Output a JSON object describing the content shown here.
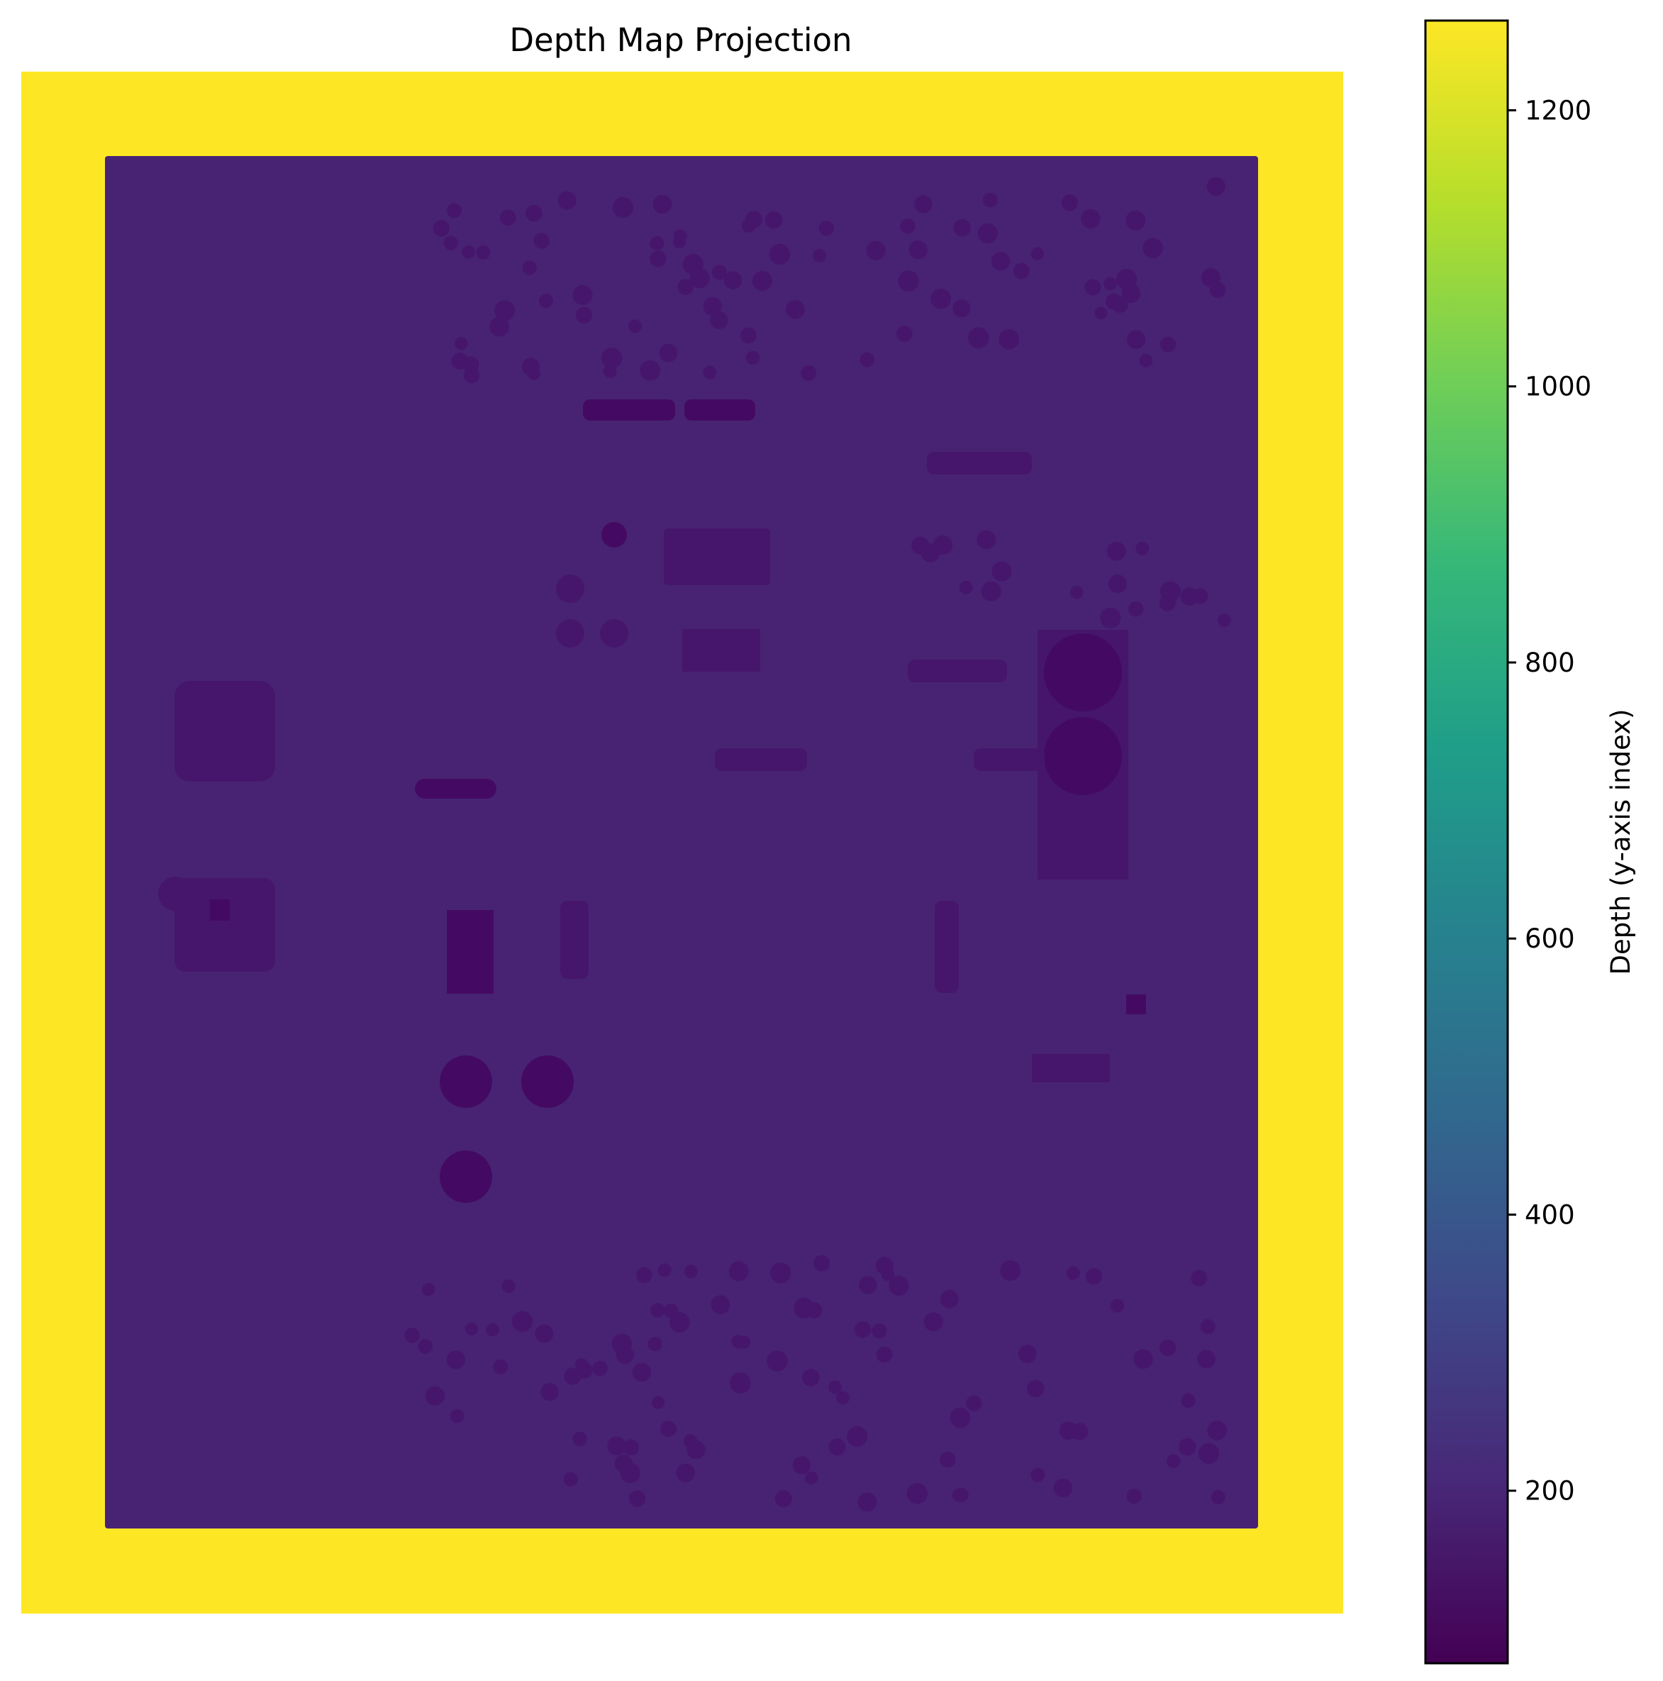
{
  "chart_data": {
    "type": "heatmap",
    "title": "Depth Map Projection",
    "xlabel": "",
    "ylabel": "",
    "axes_visible": false,
    "colormap": "viridis",
    "colorbar": {
      "label": "Depth (y-axis index)",
      "range": [
        75,
        1265
      ],
      "ticks": [
        200,
        400,
        600,
        800,
        1000,
        1200
      ],
      "tick_labels": [
        "200",
        "400",
        "600",
        "800",
        "1000",
        "1200"
      ]
    },
    "background_value": 1265,
    "board_value": 190,
    "component_depth_range": [
      80,
      190
    ],
    "component_blobs_visible": true
  },
  "colors": {
    "viridis_stops": [
      "#440154",
      "#482878",
      "#3e4989",
      "#31688e",
      "#26828e",
      "#1f9e89",
      "#35b779",
      "#6ece58",
      "#b5de2b",
      "#fde725"
    ],
    "board": "#482373",
    "component_dark": "#440a63",
    "component_mid": "#46166c",
    "background": "#fde725"
  }
}
